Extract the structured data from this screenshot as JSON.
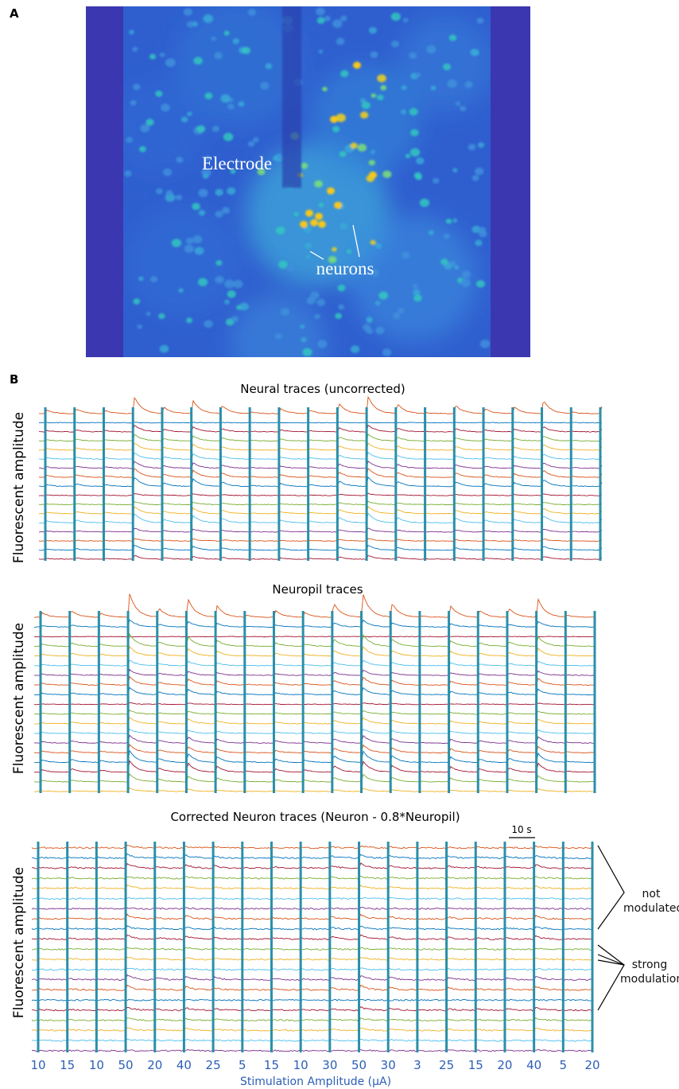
{
  "panel_a": {
    "label": "A",
    "annotations": [
      "Electrode",
      "neurons"
    ]
  },
  "panel_b": {
    "label": "B",
    "plots": [
      {
        "title": "Neural traces (uncorrected)",
        "y_label": "Fluorescent amplitude"
      },
      {
        "title": "Neuropil traces",
        "y_label": "Fluorescent amplitude"
      },
      {
        "title": "Corrected Neuron traces (Neuron - 0.8*Neuropil)",
        "y_label": "Fluorescent amplitude"
      }
    ],
    "scale_bar": "10 s",
    "groups": [
      "not modulated",
      "strong modulation"
    ],
    "stimulation_amplitudes": [
      10,
      15,
      10,
      50,
      20,
      40,
      25,
      5,
      15,
      10,
      30,
      50,
      30,
      3,
      25,
      15,
      20,
      40,
      5,
      20
    ],
    "x_label": "Stimulation Amplitude (μA)"
  }
}
